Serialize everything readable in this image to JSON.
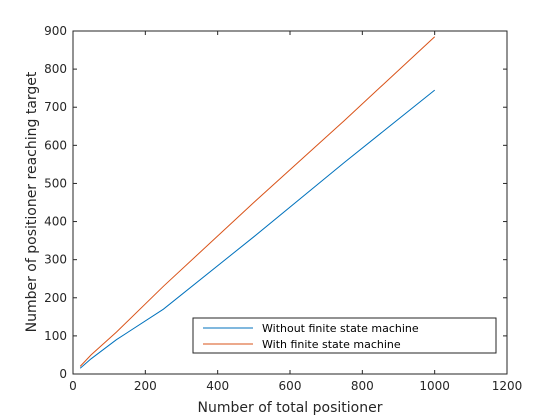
{
  "chart_data": {
    "type": "line",
    "title": "",
    "xlabel": "Number of total positioner",
    "ylabel": "Number of positioner reaching target",
    "xlim": [
      0,
      1200
    ],
    "ylim": [
      0,
      900
    ],
    "xticks": [
      0,
      200,
      400,
      600,
      800,
      1000,
      1200
    ],
    "yticks": [
      0,
      100,
      200,
      300,
      400,
      500,
      600,
      700,
      800,
      900
    ],
    "grid": false,
    "legend_position": "bottom-right",
    "series": [
      {
        "name": "Without finite state machine",
        "color": "#0072BD",
        "x": [
          20,
          50,
          120,
          250,
          500,
          750,
          1000
        ],
        "y": [
          15,
          40,
          90,
          170,
          360,
          555,
          745
        ]
      },
      {
        "name": "With finite state machine",
        "color": "#D95319",
        "x": [
          20,
          50,
          120,
          250,
          500,
          750,
          1000
        ],
        "y": [
          20,
          50,
          110,
          230,
          450,
          665,
          885
        ]
      }
    ]
  }
}
